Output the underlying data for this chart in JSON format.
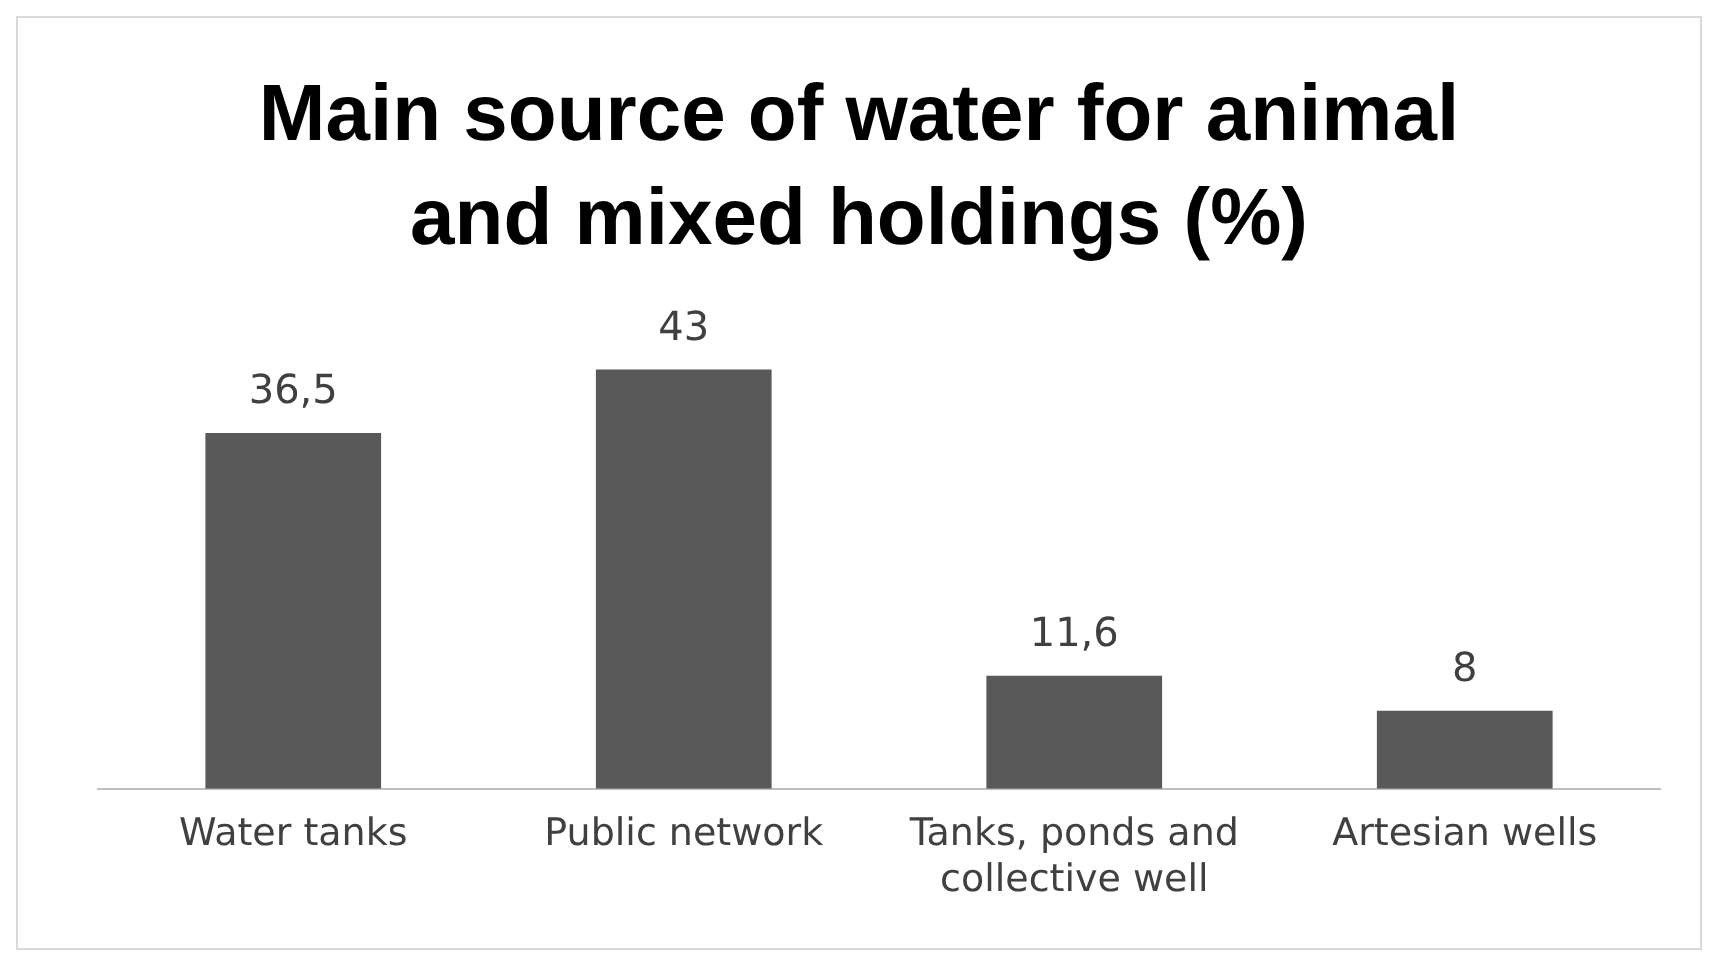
{
  "chart_data": {
    "type": "bar",
    "title": "Main source of water for animal and mixed holdings (%)",
    "categories": [
      "Water tanks",
      "Public network",
      "Tanks, ponds and collective well",
      "Artesian wells"
    ],
    "values": [
      36.5,
      43,
      11.6,
      8
    ],
    "value_labels": [
      "36,5",
      "43",
      "11,6",
      "8"
    ],
    "color": "#595959",
    "grid": false,
    "legend": false
  }
}
